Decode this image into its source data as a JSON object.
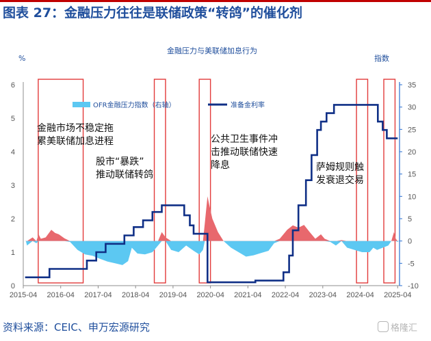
{
  "figure": {
    "title": "图表 27：金融压力往往是联储政策“转鸽”的催化剂",
    "source": "资料来源：CEIC、申万宏源研究",
    "watermark": "格隆汇"
  },
  "chart_data": {
    "type": "line",
    "title": "金融压力与美联储加息行为",
    "ylabel_left": "%",
    "ylabel_right": "指数",
    "ylim_left": [
      0,
      6
    ],
    "ylim_right": [
      -10,
      35
    ],
    "yticks_left": [
      "0",
      "1",
      "2",
      "3",
      "4",
      "5",
      "6"
    ],
    "yticks_right": [
      "-10",
      "-5",
      "0",
      "5",
      "10",
      "15",
      "20",
      "25",
      "30",
      "35"
    ],
    "xticks": [
      "2015-04",
      "2016-04",
      "2017-04",
      "2018-04",
      "2019-04",
      "2020-04",
      "2021-04",
      "2022-04",
      "2023-04",
      "2024-04",
      "2025-04"
    ],
    "colors": {
      "fed_rate": "#0f2f86",
      "ofr_positive": "#e8686d",
      "ofr_negative": "#5cc8f2",
      "shade_border": "#e23a3a",
      "axis_text": "#1f4e9c"
    },
    "series": [
      {
        "name": "准备金利率",
        "axis": "left",
        "style": "step-line",
        "points": [
          [
            2015.3,
            0.25
          ],
          [
            2015.95,
            0.5
          ],
          [
            2016.95,
            0.75
          ],
          [
            2017.2,
            1.0
          ],
          [
            2017.45,
            1.25
          ],
          [
            2017.95,
            1.5
          ],
          [
            2018.2,
            1.75
          ],
          [
            2018.45,
            1.95
          ],
          [
            2018.7,
            2.2
          ],
          [
            2018.95,
            2.4
          ],
          [
            2019.55,
            2.1
          ],
          [
            2019.7,
            1.8
          ],
          [
            2019.8,
            1.55
          ],
          [
            2020.17,
            0.1
          ],
          [
            2021.45,
            0.15
          ],
          [
            2022.2,
            0.4
          ],
          [
            2022.35,
            0.9
          ],
          [
            2022.45,
            1.65
          ],
          [
            2022.6,
            2.4
          ],
          [
            2022.8,
            3.15
          ],
          [
            2022.95,
            3.9
          ],
          [
            2023.1,
            4.65
          ],
          [
            2023.2,
            4.9
          ],
          [
            2023.35,
            5.15
          ],
          [
            2023.55,
            5.4
          ],
          [
            2024.72,
            4.9
          ],
          [
            2024.85,
            4.65
          ],
          [
            2024.96,
            4.4
          ],
          [
            2025.25,
            4.4
          ]
        ]
      },
      {
        "name": "OFR金融压力指数（右轴）",
        "axis": "right",
        "style": "area",
        "points": [
          [
            2015.3,
            0
          ],
          [
            2015.32,
            0
          ],
          [
            2015.35,
            -1
          ],
          [
            2015.5,
            0.8
          ],
          [
            2015.6,
            -0.5
          ],
          [
            2015.66,
            1.5
          ],
          [
            2015.72,
            0.5
          ],
          [
            2015.85,
            0.8
          ],
          [
            2016.0,
            2.5
          ],
          [
            2016.1,
            1.8
          ],
          [
            2016.2,
            1.5
          ],
          [
            2016.35,
            0.6
          ],
          [
            2016.5,
            -0.2
          ],
          [
            2016.7,
            -2
          ],
          [
            2016.9,
            -3
          ],
          [
            2017.1,
            -3.3
          ],
          [
            2017.3,
            -4
          ],
          [
            2017.5,
            -4.6
          ],
          [
            2017.7,
            -5
          ],
          [
            2017.9,
            -5.4
          ],
          [
            2018.05,
            -4.5
          ],
          [
            2018.15,
            -1.5
          ],
          [
            2018.3,
            -2.8
          ],
          [
            2018.5,
            -3
          ],
          [
            2018.7,
            -2.5
          ],
          [
            2018.85,
            -1
          ],
          [
            2018.95,
            2
          ],
          [
            2019.05,
            0.8
          ],
          [
            2019.2,
            -2
          ],
          [
            2019.4,
            -2.5
          ],
          [
            2019.6,
            -1
          ],
          [
            2019.8,
            -2.2
          ],
          [
            2019.95,
            -3
          ],
          [
            2020.05,
            -2
          ],
          [
            2020.1,
            4
          ],
          [
            2020.17,
            10
          ],
          [
            2020.22,
            8
          ],
          [
            2020.3,
            5
          ],
          [
            2020.45,
            2
          ],
          [
            2020.6,
            0
          ],
          [
            2020.8,
            -1.5
          ],
          [
            2021.0,
            -2.5
          ],
          [
            2021.2,
            -3.5
          ],
          [
            2021.4,
            -3.2
          ],
          [
            2021.6,
            -2.7
          ],
          [
            2021.8,
            -2.2
          ],
          [
            2021.95,
            -0.5
          ],
          [
            2022.1,
            0.5
          ],
          [
            2022.2,
            1.5
          ],
          [
            2022.3,
            2.5
          ],
          [
            2022.45,
            3.5
          ],
          [
            2022.6,
            3
          ],
          [
            2022.75,
            3.6
          ],
          [
            2022.9,
            2
          ],
          [
            2023.05,
            0.5
          ],
          [
            2023.2,
            1.5
          ],
          [
            2023.3,
            0.5
          ],
          [
            2023.45,
            -0.2
          ],
          [
            2023.6,
            -1
          ],
          [
            2023.75,
            0.2
          ],
          [
            2023.9,
            -1.5
          ],
          [
            2024.1,
            -2
          ],
          [
            2024.3,
            -2.5
          ],
          [
            2024.5,
            -2.5
          ],
          [
            2024.6,
            -1.5
          ],
          [
            2024.7,
            -2
          ],
          [
            2024.85,
            -1.5
          ],
          [
            2025.0,
            -1
          ],
          [
            2025.08,
            0
          ],
          [
            2025.15,
            2
          ],
          [
            2025.2,
            0.5
          ],
          [
            2025.25,
            -0.2
          ],
          [
            2025.28,
            0
          ]
        ]
      }
    ],
    "annotations": [
      {
        "text": "金融市场不稳定拖\n累美联储加息进程"
      },
      {
        "text": "股市“暴跌”\n推动联储转鸽"
      },
      {
        "text": "公共卫生事件冲\n击推动联储快速\n降息"
      },
      {
        "text": "萨姆规则触\n发衰退交易"
      }
    ],
    "shaded_periods": [
      [
        2015.65,
        2016.85
      ],
      [
        2018.75,
        2019.05
      ],
      [
        2019.95,
        2020.25
      ],
      [
        2024.15,
        2024.45
      ],
      [
        2024.88,
        2025.18
      ]
    ]
  }
}
